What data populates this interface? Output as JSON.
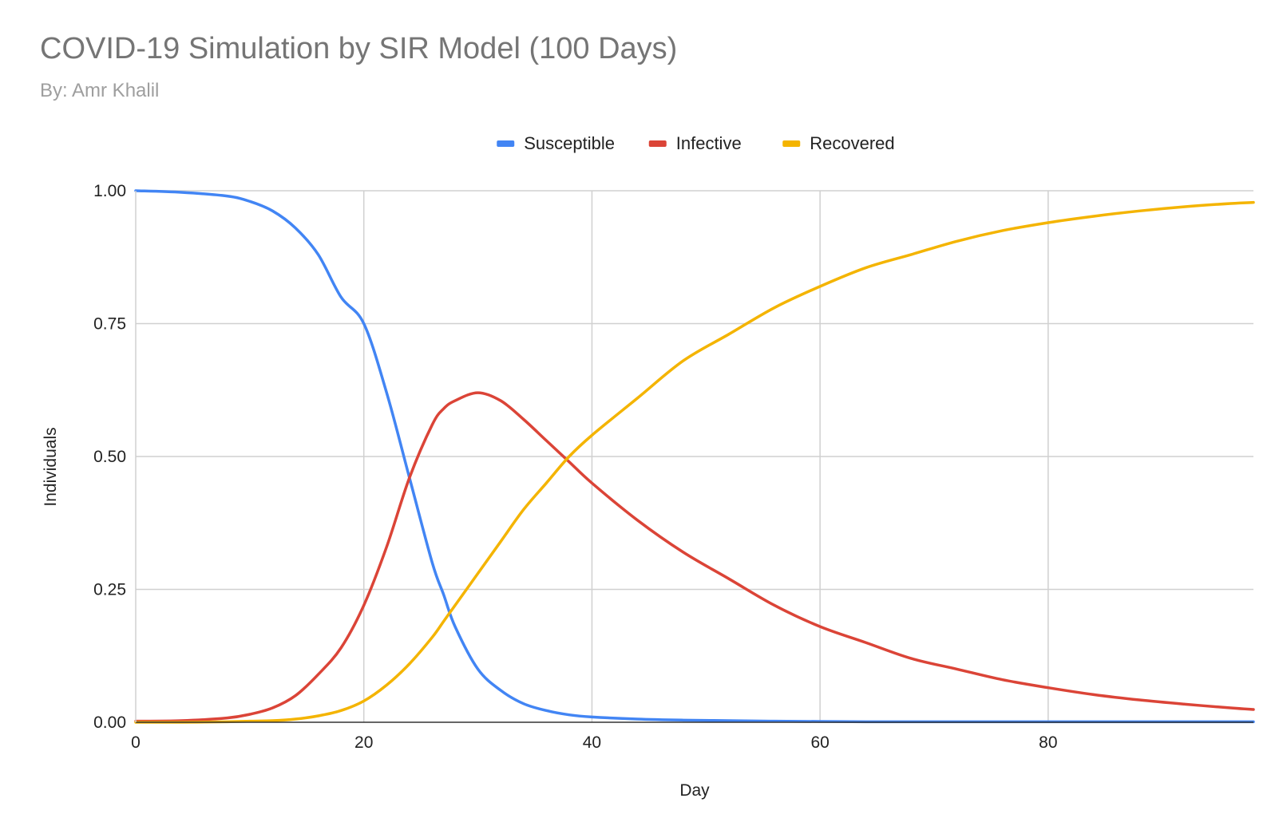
{
  "chart_data": {
    "type": "line",
    "title": "COVID-19 Simulation by SIR Model (100 Days)",
    "subtitle": "By: Amr Khalil",
    "xlabel": "Day",
    "ylabel": "Individuals",
    "xlim": [
      0,
      98
    ],
    "ylim": [
      0,
      1
    ],
    "x_ticks": [
      0,
      20,
      40,
      60,
      80
    ],
    "x_tick_labels": [
      "0",
      "20",
      "40",
      "60",
      "80"
    ],
    "y_ticks": [
      0,
      0.25,
      0.5,
      0.75,
      1
    ],
    "y_tick_labels": [
      "0.00",
      "0.25",
      "0.50",
      "0.75",
      "1.00"
    ],
    "grid": true,
    "legend_position": "top-center",
    "x": [
      0,
      4,
      8,
      10,
      12,
      14,
      16,
      18,
      20,
      22,
      24,
      26,
      27,
      28,
      30,
      32,
      34,
      36,
      38,
      40,
      44,
      48,
      52,
      56,
      60,
      64,
      68,
      72,
      76,
      80,
      84,
      88,
      92,
      96,
      98
    ],
    "series": [
      {
        "name": "Susceptible",
        "color": "#4285F4",
        "values": [
          1.0,
          0.997,
          0.99,
          0.98,
          0.962,
          0.93,
          0.88,
          0.8,
          0.75,
          0.62,
          0.46,
          0.3,
          0.24,
          0.18,
          0.1,
          0.06,
          0.035,
          0.022,
          0.014,
          0.01,
          0.006,
          0.004,
          0.003,
          0.002,
          0.0015,
          0.001,
          0.001,
          0.001,
          0.001,
          0.001,
          0.001,
          0.001,
          0.001,
          0.001,
          0.001
        ]
      },
      {
        "name": "Infective",
        "color": "#DB4437",
        "values": [
          0.002,
          0.003,
          0.008,
          0.015,
          0.027,
          0.05,
          0.09,
          0.14,
          0.22,
          0.33,
          0.46,
          0.56,
          0.59,
          0.605,
          0.62,
          0.605,
          0.57,
          0.53,
          0.49,
          0.45,
          0.38,
          0.32,
          0.27,
          0.22,
          0.18,
          0.15,
          0.12,
          0.1,
          0.08,
          0.065,
          0.052,
          0.042,
          0.034,
          0.027,
          0.024
        ]
      },
      {
        "name": "Recovered",
        "color": "#F4B400",
        "values": [
          0.0,
          0.0,
          0.001,
          0.002,
          0.003,
          0.006,
          0.012,
          0.022,
          0.04,
          0.07,
          0.11,
          0.16,
          0.19,
          0.22,
          0.28,
          0.34,
          0.4,
          0.45,
          0.5,
          0.54,
          0.61,
          0.68,
          0.73,
          0.78,
          0.82,
          0.855,
          0.88,
          0.905,
          0.925,
          0.94,
          0.952,
          0.962,
          0.97,
          0.976,
          0.978
        ]
      }
    ]
  }
}
